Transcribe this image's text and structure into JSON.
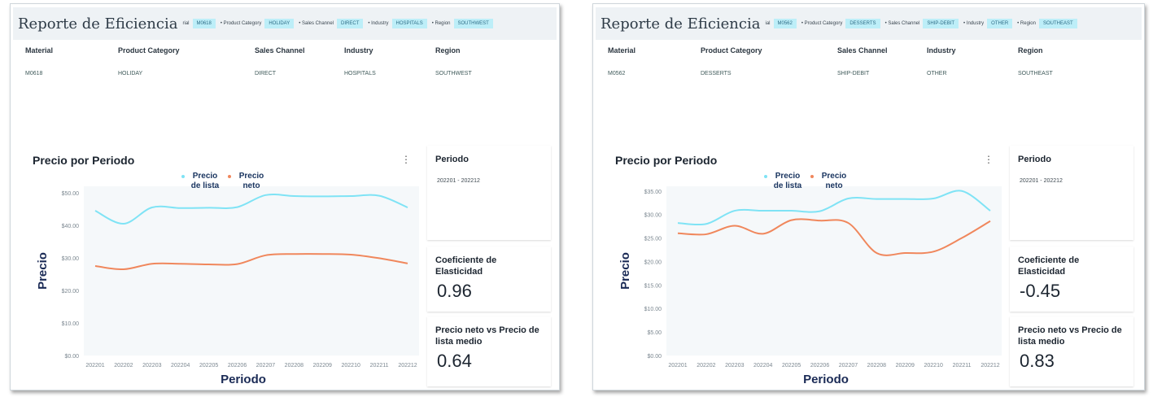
{
  "reports": [
    {
      "title": "Reporte de Eficiencia",
      "filters": [
        {
          "label": "rial",
          "value": "M0618"
        },
        {
          "label": "• Product Category",
          "value": "HOLIDAY"
        },
        {
          "label": "• Sales Channel",
          "value": "DIRECT"
        },
        {
          "label": "• Industry",
          "value": "HOSPITALS"
        },
        {
          "label": "• Region",
          "value": "SOUTHWEST"
        }
      ],
      "info": {
        "headers": [
          "Material",
          "Product Category",
          "Sales Channel",
          "Industry",
          "Region"
        ],
        "values": [
          "M0618",
          "HOLIDAY",
          "DIRECT",
          "HOSPITALS",
          "SOUTHWEST"
        ]
      },
      "kpis": {
        "periodo_title": "Periodo",
        "periodo_value": "202201 - 202212",
        "elasticidad_title": "Coeficiente de Elasticidad",
        "elasticidad_value": "0.96",
        "ratio_title": "Precio neto vs Precio de lista medio",
        "ratio_value": "0.64"
      },
      "chart_data": {
        "type": "line",
        "title": "Precio por Periodo",
        "xlabel": "Periodo",
        "ylabel": "Precio",
        "categories": [
          "202201",
          "202202",
          "202203",
          "202204",
          "202205",
          "202206",
          "202207",
          "202208",
          "202209",
          "202210",
          "202211",
          "202212"
        ],
        "y_ticks": [
          "$0.00",
          "$10.00",
          "$20.00",
          "$30.00",
          "$40.00",
          "$50.00"
        ],
        "ylim": [
          0,
          52
        ],
        "series": [
          {
            "name": "Precio de lista",
            "color": "#7fe3f5",
            "values": [
              44.5,
              40.5,
              45.5,
              45.3,
              45.4,
              45.6,
              49.3,
              49.0,
              48.9,
              49.0,
              49.1,
              45.5
            ]
          },
          {
            "name": "Precio neto",
            "color": "#f0875c",
            "values": [
              27.5,
              26.5,
              28.2,
              28.2,
              28.0,
              28.1,
              30.8,
              31.2,
              31.2,
              31.0,
              29.9,
              28.3
            ]
          }
        ]
      }
    },
    {
      "title": "Reporte de Eficiencia",
      "filters": [
        {
          "label": "ial",
          "value": "M0562"
        },
        {
          "label": "• Product Category",
          "value": "DESSERTS"
        },
        {
          "label": "• Sales Channel",
          "value": "SHIP-DEBIT"
        },
        {
          "label": "• Industry",
          "value": "OTHER"
        },
        {
          "label": "• Region",
          "value": "SOUTHEAST"
        }
      ],
      "info": {
        "headers": [
          "Material",
          "Product Category",
          "Sales Channel",
          "Industry",
          "Region"
        ],
        "values": [
          "M0562",
          "DESSERTS",
          "SHIP-DEBIT",
          "OTHER",
          "SOUTHEAST"
        ]
      },
      "kpis": {
        "periodo_title": "Periodo",
        "periodo_value": "202201 - 202212",
        "elasticidad_title": "Coeficiente de Elasticidad",
        "elasticidad_value": "-0.45",
        "ratio_title": "Precio neto vs Precio de lista medio",
        "ratio_value": "0.83"
      },
      "chart_data": {
        "type": "line",
        "title": "Precio por Periodo",
        "xlabel": "Periodo",
        "ylabel": "Precio",
        "categories": [
          "202201",
          "202202",
          "202203",
          "202204",
          "202205",
          "202206",
          "202207",
          "202208",
          "202209",
          "202210",
          "202211",
          "202212"
        ],
        "y_ticks": [
          "$0.00",
          "$5.00",
          "$10.00",
          "$15.00",
          "$20.00",
          "$25.00",
          "$30.00",
          "$35.00"
        ],
        "ylim": [
          0,
          36
        ],
        "series": [
          {
            "name": "Precio de lista",
            "color": "#7fe3f5",
            "values": [
              28.2,
              28.0,
              30.8,
              30.8,
              30.8,
              30.7,
              33.4,
              33.3,
              33.3,
              33.4,
              35.0,
              30.8
            ]
          },
          {
            "name": "Precio neto",
            "color": "#f0875c",
            "values": [
              26.0,
              25.8,
              27.6,
              25.9,
              28.8,
              28.7,
              28.2,
              21.8,
              21.8,
              22.1,
              25.0,
              28.6
            ]
          }
        ]
      }
    }
  ]
}
